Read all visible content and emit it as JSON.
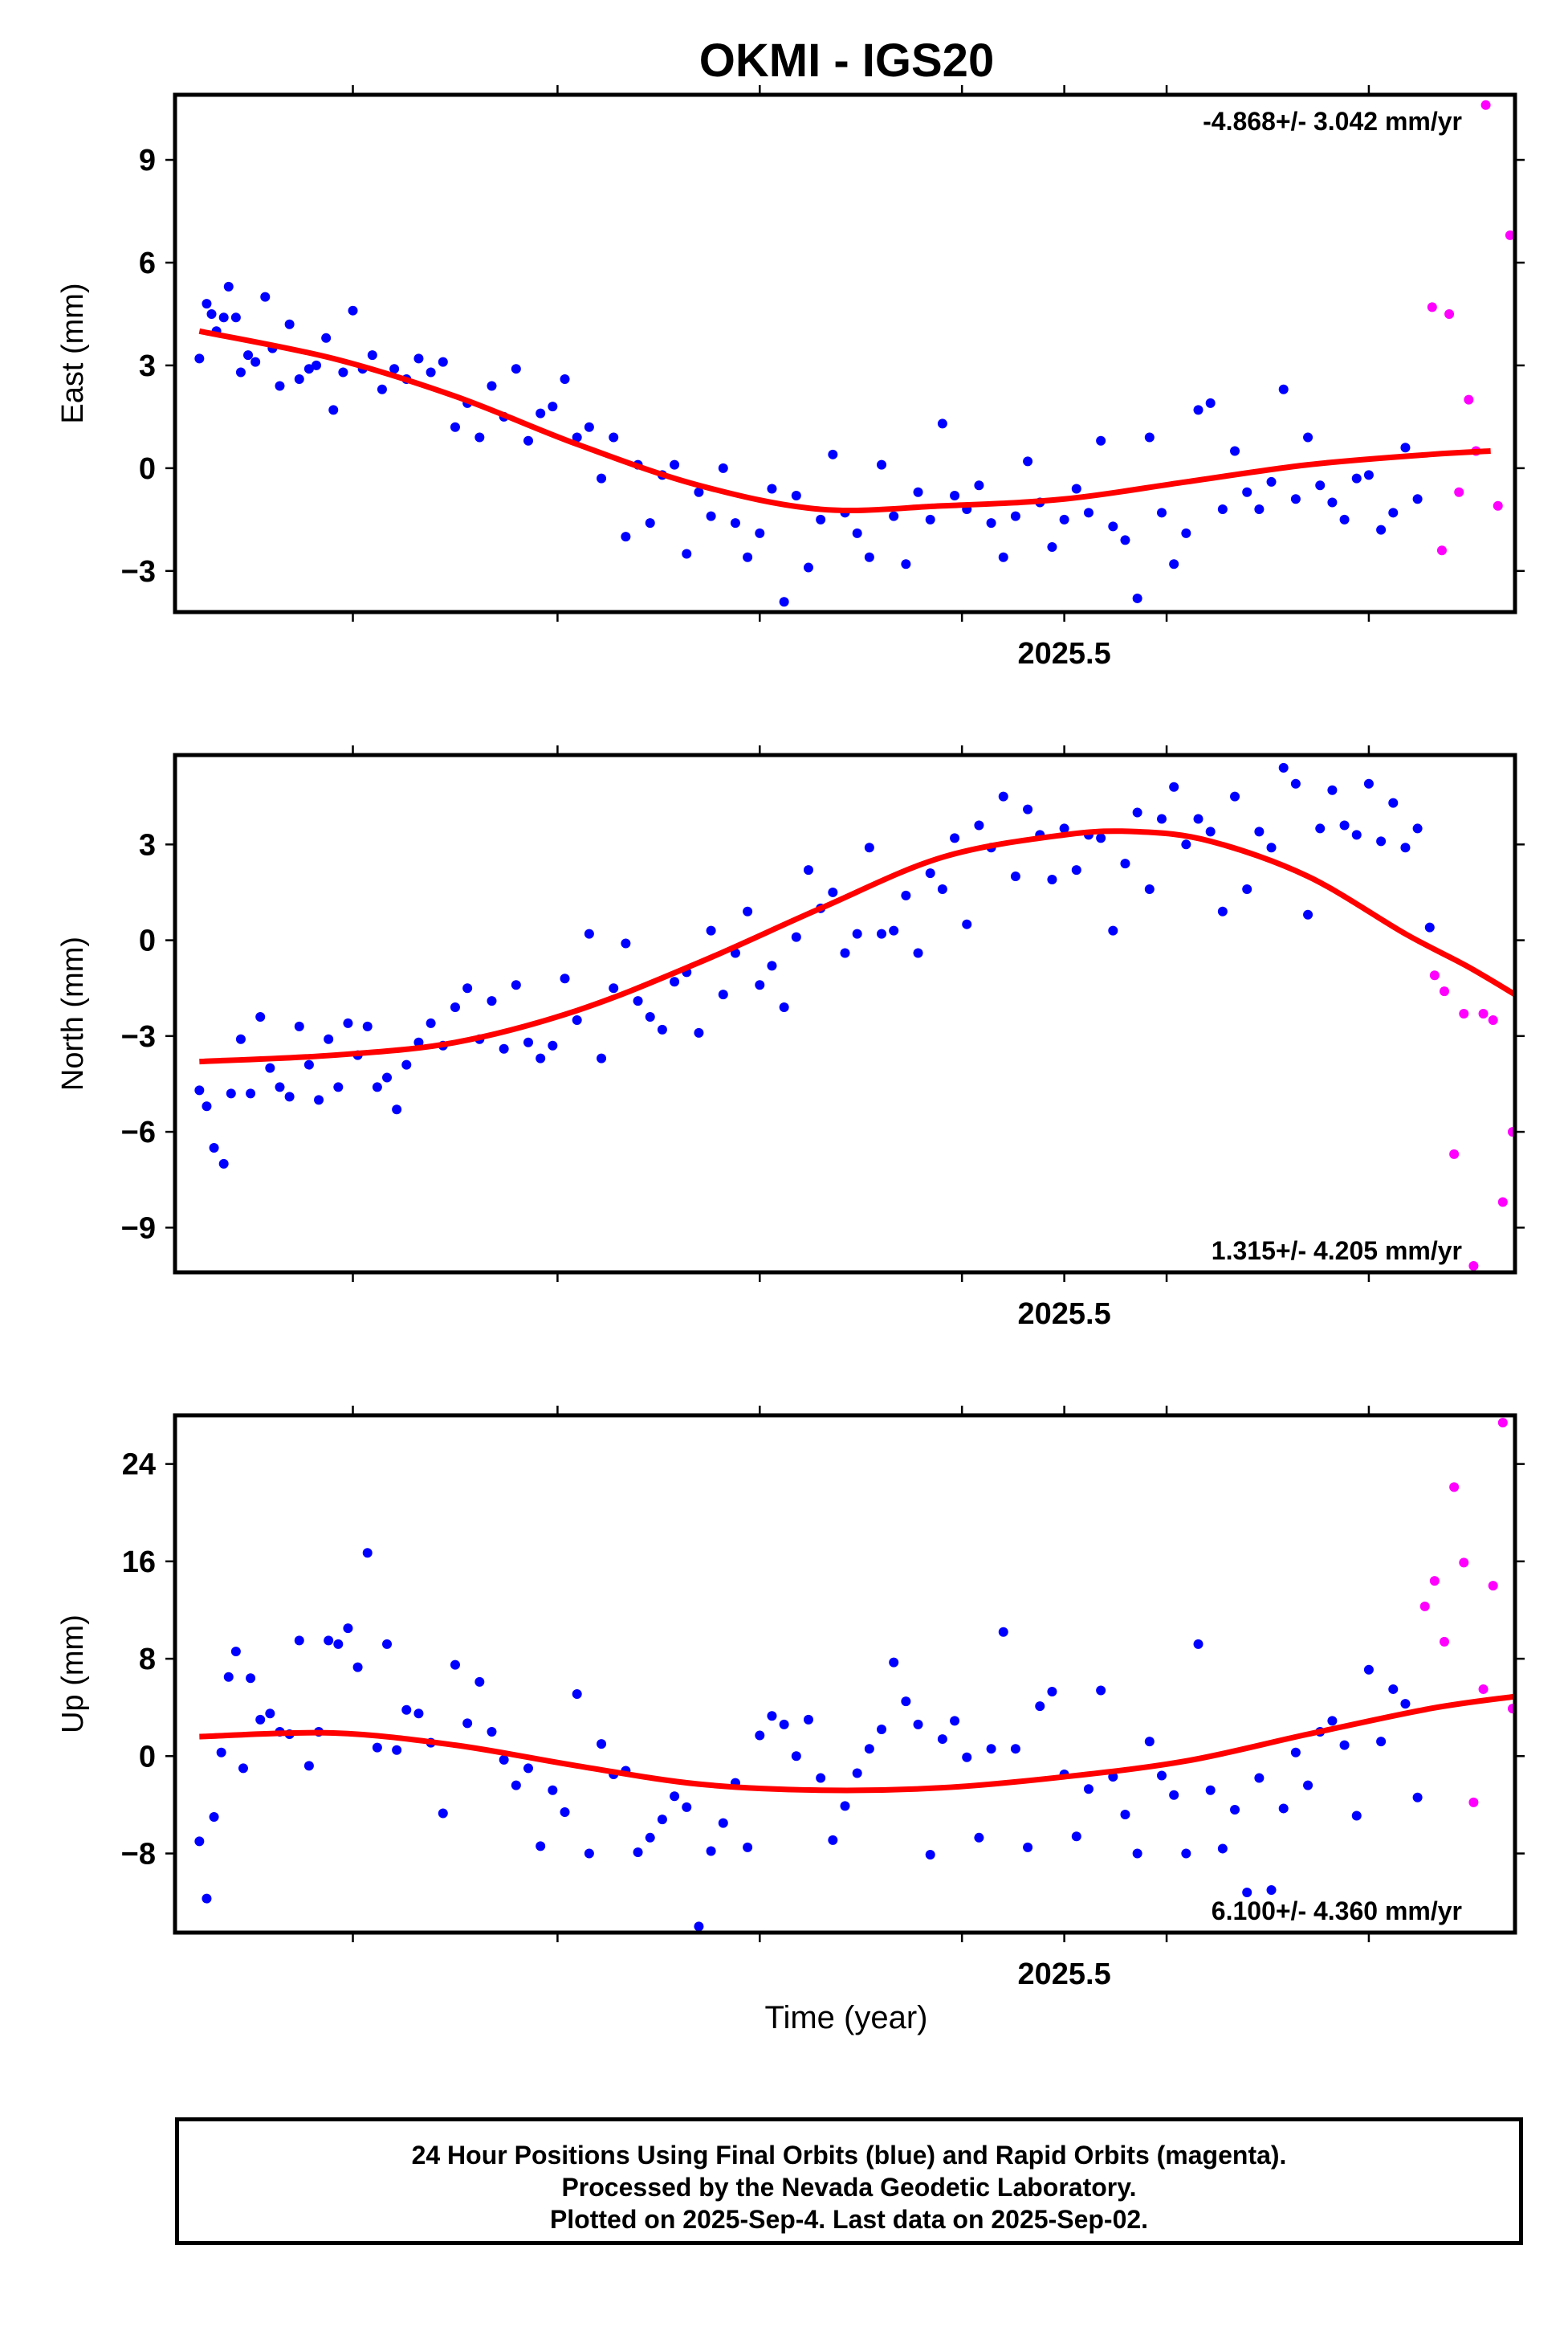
{
  "title": "OKMI - IGS20",
  "x_axis_label": "Time (year)",
  "footer": {
    "lines": [
      "24 Hour Positions Using Final Orbits (blue) and Rapid Orbits (magenta).",
      "Processed by the Nevada Geodetic Laboratory.",
      "Plotted on 2025-Sep-4. Last data on 2025-Sep-02."
    ]
  },
  "colors": {
    "final": "#0000ff",
    "rapid": "#ff00ff",
    "fit": "#ff0000"
  },
  "chart_data": [
    {
      "type": "scatter",
      "component": "east",
      "ylabel": "East (mm)",
      "rate_text": "-4.868+/- 3.042 mm/yr",
      "rate_position": "top-right",
      "xlim": [
        2025.135,
        2025.685
      ],
      "ylim": [
        -4.2,
        10.9
      ],
      "x_ticks": [
        2025.208,
        2025.292,
        2025.375,
        2025.458,
        2025.5,
        2025.542,
        2025.625
      ],
      "x_tick_labels": [
        {
          "x": 2025.5,
          "label": "2025.5"
        }
      ],
      "y_ticks": [
        -3,
        0,
        3,
        6,
        9
      ],
      "y_tick_labels": [
        "−3",
        "0",
        "3",
        "6",
        "9"
      ],
      "fit": {
        "x": [
          2025.145,
          2025.2,
          2025.25,
          2025.3,
          2025.35,
          2025.4,
          2025.45,
          2025.5,
          2025.55,
          2025.6,
          2025.65,
          2025.675
        ],
        "y": [
          4.0,
          3.2,
          2.1,
          0.7,
          -0.5,
          -1.2,
          -1.1,
          -0.9,
          -0.4,
          0.1,
          0.4,
          0.5
        ]
      },
      "final": {
        "x": [
          2025.145,
          2025.148,
          2025.15,
          2025.152,
          2025.155,
          2025.157,
          2025.16,
          2025.162,
          2025.165,
          2025.168,
          2025.172,
          2025.175,
          2025.178,
          2025.182,
          2025.186,
          2025.19,
          2025.193,
          2025.197,
          2025.2,
          2025.204,
          2025.208,
          2025.212,
          2025.216,
          2025.22,
          2025.225,
          2025.23,
          2025.235,
          2025.24,
          2025.245,
          2025.25,
          2025.255,
          2025.26,
          2025.265,
          2025.27,
          2025.275,
          2025.28,
          2025.285,
          2025.29,
          2025.295,
          2025.3,
          2025.305,
          2025.31,
          2025.315,
          2025.32,
          2025.325,
          2025.33,
          2025.335,
          2025.34,
          2025.345,
          2025.35,
          2025.355,
          2025.36,
          2025.365,
          2025.37,
          2025.375,
          2025.38,
          2025.385,
          2025.39,
          2025.395,
          2025.4,
          2025.405,
          2025.41,
          2025.415,
          2025.42,
          2025.425,
          2025.43,
          2025.435,
          2025.44,
          2025.445,
          2025.45,
          2025.455,
          2025.46,
          2025.465,
          2025.47,
          2025.475,
          2025.48,
          2025.485,
          2025.49,
          2025.495,
          2025.5,
          2025.505,
          2025.51,
          2025.515,
          2025.52,
          2025.525,
          2025.53,
          2025.535,
          2025.54,
          2025.545,
          2025.55,
          2025.555,
          2025.56,
          2025.565,
          2025.57,
          2025.575,
          2025.58,
          2025.585,
          2025.59,
          2025.595,
          2025.6,
          2025.605,
          2025.61,
          2025.615,
          2025.62,
          2025.625,
          2025.63,
          2025.635,
          2025.64,
          2025.645
        ],
        "y": [
          3.2,
          4.8,
          4.5,
          4.0,
          4.4,
          5.3,
          4.4,
          2.8,
          3.3,
          3.1,
          5.0,
          3.5,
          2.4,
          4.2,
          2.6,
          2.9,
          3.0,
          3.8,
          1.7,
          2.8,
          4.6,
          2.9,
          3.3,
          2.3,
          2.9,
          2.6,
          3.2,
          2.8,
          3.1,
          1.2,
          1.9,
          0.9,
          2.4,
          1.5,
          2.9,
          0.8,
          1.6,
          1.8,
          2.6,
          0.9,
          1.2,
          -0.3,
          0.9,
          -2.0,
          0.1,
          -1.6,
          -0.2,
          0.1,
          -2.5,
          -0.7,
          -1.4,
          0.0,
          -1.6,
          -2.6,
          -1.9,
          -0.6,
          -3.9,
          -0.8,
          -2.9,
          -1.5,
          0.4,
          -1.3,
          -1.9,
          -2.6,
          0.1,
          -1.4,
          -2.8,
          -0.7,
          -1.5,
          1.3,
          -0.8,
          -1.2,
          -0.5,
          -1.6,
          -2.6,
          -1.4,
          0.2,
          -1.0,
          -2.3,
          -1.5,
          -0.6,
          -1.3,
          0.8,
          -1.7,
          -2.1,
          -3.8,
          0.9,
          -1.3,
          -2.8,
          -1.9,
          1.7,
          1.9,
          -1.2,
          0.5,
          -0.7,
          -1.2,
          -0.4,
          2.3,
          -0.9,
          0.9,
          -0.5,
          -1.0,
          -1.5,
          -0.3,
          -0.2,
          -1.8,
          -1.3,
          0.6,
          -0.9
        ]
      },
      "rapid": {
        "x": [
          2025.651,
          2025.655,
          2025.658,
          2025.662,
          2025.666,
          2025.669,
          2025.673,
          2025.678,
          2025.683
        ],
        "y": [
          4.7,
          -2.4,
          4.5,
          -0.7,
          2.0,
          0.5,
          10.6,
          -1.1,
          6.8
        ]
      }
    },
    {
      "type": "scatter",
      "component": "north",
      "ylabel": "North (mm)",
      "rate_text": "1.315+/- 4.205 mm/yr",
      "rate_position": "bottom-right",
      "xlim": [
        2025.135,
        2025.685
      ],
      "ylim": [
        -10.4,
        5.8
      ],
      "x_ticks": [
        2025.208,
        2025.292,
        2025.375,
        2025.458,
        2025.5,
        2025.542,
        2025.625
      ],
      "x_tick_labels": [
        {
          "x": 2025.5,
          "label": "2025.5"
        }
      ],
      "y_ticks": [
        -9,
        -6,
        -3,
        0,
        3
      ],
      "y_tick_labels": [
        "−9",
        "−6",
        "−3",
        "0",
        "3"
      ],
      "fit": {
        "x": [
          2025.145,
          2025.2,
          2025.25,
          2025.3,
          2025.35,
          2025.4,
          2025.45,
          2025.5,
          2025.53,
          2025.56,
          2025.6,
          2025.64,
          2025.665,
          2025.685
        ],
        "y": [
          -3.8,
          -3.6,
          -3.2,
          -2.2,
          -0.7,
          1.0,
          2.6,
          3.3,
          3.4,
          3.1,
          2.0,
          0.2,
          -0.8,
          -1.7
        ]
      },
      "final": {
        "x": [
          2025.145,
          2025.148,
          2025.151,
          2025.155,
          2025.158,
          2025.162,
          2025.166,
          2025.17,
          2025.174,
          2025.178,
          2025.182,
          2025.186,
          2025.19,
          2025.194,
          2025.198,
          2025.202,
          2025.206,
          2025.21,
          2025.214,
          2025.218,
          2025.222,
          2025.226,
          2025.23,
          2025.235,
          2025.24,
          2025.245,
          2025.25,
          2025.255,
          2025.26,
          2025.265,
          2025.27,
          2025.275,
          2025.28,
          2025.285,
          2025.29,
          2025.295,
          2025.3,
          2025.305,
          2025.31,
          2025.315,
          2025.32,
          2025.325,
          2025.33,
          2025.335,
          2025.34,
          2025.345,
          2025.35,
          2025.355,
          2025.36,
          2025.365,
          2025.37,
          2025.375,
          2025.38,
          2025.385,
          2025.39,
          2025.395,
          2025.4,
          2025.405,
          2025.41,
          2025.415,
          2025.42,
          2025.425,
          2025.43,
          2025.435,
          2025.44,
          2025.445,
          2025.45,
          2025.455,
          2025.46,
          2025.465,
          2025.47,
          2025.475,
          2025.48,
          2025.485,
          2025.49,
          2025.495,
          2025.5,
          2025.505,
          2025.51,
          2025.515,
          2025.52,
          2025.525,
          2025.53,
          2025.535,
          2025.54,
          2025.545,
          2025.55,
          2025.555,
          2025.56,
          2025.565,
          2025.57,
          2025.575,
          2025.58,
          2025.585,
          2025.59,
          2025.595,
          2025.6,
          2025.605,
          2025.61,
          2025.615,
          2025.62,
          2025.625,
          2025.63,
          2025.635,
          2025.64,
          2025.645,
          2025.65
        ],
        "y": [
          -4.7,
          -5.2,
          -6.5,
          -7.0,
          -4.8,
          -3.1,
          -4.8,
          -2.4,
          -4.0,
          -4.6,
          -4.9,
          -2.7,
          -3.9,
          -5.0,
          -3.1,
          -4.6,
          -2.6,
          -3.6,
          -2.7,
          -4.6,
          -4.3,
          -5.3,
          -3.9,
          -3.2,
          -2.6,
          -3.3,
          -2.1,
          -1.5,
          -3.1,
          -1.9,
          -3.4,
          -1.4,
          -3.2,
          -3.7,
          -3.3,
          -1.2,
          -2.5,
          0.2,
          -3.7,
          -1.5,
          -0.1,
          -1.9,
          -2.4,
          -2.8,
          -1.3,
          -1.0,
          -2.9,
          0.3,
          -1.7,
          -0.4,
          0.9,
          -1.4,
          -0.8,
          -2.1,
          0.1,
          2.2,
          1.0,
          1.5,
          -0.4,
          0.2,
          2.9,
          0.2,
          0.3,
          1.4,
          -0.4,
          2.1,
          1.6,
          3.2,
          0.5,
          3.6,
          2.9,
          4.5,
          2.0,
          4.1,
          3.3,
          1.9,
          3.5,
          2.2,
          3.3,
          3.2,
          0.3,
          2.4,
          4.0,
          1.6,
          3.8,
          4.8,
          3.0,
          3.8,
          3.4,
          0.9,
          4.5,
          1.6,
          3.4,
          2.9,
          5.4,
          4.9,
          0.8,
          3.5,
          4.7,
          3.6,
          3.3,
          4.9,
          3.1,
          4.3,
          2.9,
          3.5,
          0.4
        ]
      },
      "rapid": {
        "x": [
          2025.652,
          2025.656,
          2025.66,
          2025.664,
          2025.668,
          2025.672,
          2025.676,
          2025.68,
          2025.684
        ],
        "y": [
          -1.1,
          -1.6,
          -6.7,
          -2.3,
          -10.2,
          -2.3,
          -2.5,
          -8.2,
          -6.0
        ]
      }
    },
    {
      "type": "scatter",
      "component": "up",
      "ylabel": "Up (mm)",
      "rate_text": "6.100+/- 4.360 mm/yr",
      "rate_position": "bottom-right",
      "xlim": [
        2025.135,
        2025.685
      ],
      "ylim": [
        -14.5,
        28.0
      ],
      "x_ticks": [
        2025.208,
        2025.292,
        2025.375,
        2025.458,
        2025.5,
        2025.542,
        2025.625
      ],
      "x_tick_labels": [
        {
          "x": 2025.5,
          "label": "2025.5"
        }
      ],
      "y_ticks": [
        -8,
        0,
        8,
        16,
        24
      ],
      "y_tick_labels": [
        "−8",
        "0",
        "8",
        "16",
        "24"
      ],
      "fit": {
        "x": [
          2025.145,
          2025.2,
          2025.25,
          2025.3,
          2025.35,
          2025.4,
          2025.45,
          2025.5,
          2025.55,
          2025.6,
          2025.65,
          2025.685
        ],
        "y": [
          1.6,
          1.9,
          0.9,
          -0.8,
          -2.3,
          -2.8,
          -2.6,
          -1.7,
          -0.4,
          1.8,
          3.9,
          4.9
        ]
      },
      "final": {
        "x": [
          2025.145,
          2025.148,
          2025.151,
          2025.154,
          2025.157,
          2025.16,
          2025.163,
          2025.166,
          2025.17,
          2025.174,
          2025.178,
          2025.182,
          2025.186,
          2025.19,
          2025.194,
          2025.198,
          2025.202,
          2025.206,
          2025.21,
          2025.214,
          2025.218,
          2025.222,
          2025.226,
          2025.23,
          2025.235,
          2025.24,
          2025.245,
          2025.25,
          2025.255,
          2025.26,
          2025.265,
          2025.27,
          2025.275,
          2025.28,
          2025.285,
          2025.29,
          2025.295,
          2025.3,
          2025.305,
          2025.31,
          2025.315,
          2025.32,
          2025.325,
          2025.33,
          2025.335,
          2025.34,
          2025.345,
          2025.35,
          2025.355,
          2025.36,
          2025.365,
          2025.37,
          2025.375,
          2025.38,
          2025.385,
          2025.39,
          2025.395,
          2025.4,
          2025.405,
          2025.41,
          2025.415,
          2025.42,
          2025.425,
          2025.43,
          2025.435,
          2025.44,
          2025.445,
          2025.45,
          2025.455,
          2025.46,
          2025.465,
          2025.47,
          2025.475,
          2025.48,
          2025.485,
          2025.49,
          2025.495,
          2025.5,
          2025.505,
          2025.51,
          2025.515,
          2025.52,
          2025.525,
          2025.53,
          2025.535,
          2025.54,
          2025.545,
          2025.55,
          2025.555,
          2025.56,
          2025.565,
          2025.57,
          2025.575,
          2025.58,
          2025.585,
          2025.59,
          2025.595,
          2025.6,
          2025.605,
          2025.61,
          2025.615,
          2025.62,
          2025.625,
          2025.63,
          2025.635,
          2025.64,
          2025.645
        ],
        "y": [
          -7.0,
          -11.7,
          -5.0,
          0.3,
          6.5,
          8.6,
          -1.0,
          6.4,
          3.0,
          3.5,
          2.0,
          1.8,
          9.5,
          -0.8,
          2.0,
          9.5,
          9.2,
          10.5,
          7.3,
          16.7,
          0.7,
          9.2,
          0.5,
          3.8,
          3.5,
          1.1,
          -4.7,
          7.5,
          2.7,
          6.1,
          2.0,
          -0.3,
          -2.4,
          -1.0,
          -7.4,
          -2.8,
          -4.6,
          5.1,
          -8.0,
          1.0,
          -1.5,
          -1.2,
          -7.9,
          -6.7,
          -5.2,
          -3.3,
          -4.2,
          -14.0,
          -7.8,
          -5.5,
          -2.2,
          -7.5,
          1.7,
          3.3,
          2.6,
          0.0,
          3.0,
          -1.8,
          -6.9,
          -4.1,
          -1.4,
          0.6,
          2.2,
          7.7,
          4.5,
          2.6,
          -8.1,
          1.4,
          2.9,
          -0.1,
          -6.7,
          0.6,
          10.2,
          0.6,
          -7.5,
          4.1,
          5.3,
          -1.5,
          -6.6,
          -2.7,
          5.4,
          -1.7,
          -4.8,
          -8.0,
          1.2,
          -1.6,
          -3.2,
          -8.0,
          9.2,
          -2.8,
          -7.6,
          -4.4,
          -11.2,
          -1.8,
          -11.0,
          -4.3,
          0.3,
          -2.4,
          2.0,
          2.9,
          0.9,
          -4.9,
          7.1,
          1.2,
          5.5,
          4.3,
          -3.4
        ]
      },
      "rapid": {
        "x": [
          2025.648,
          2025.652,
          2025.656,
          2025.66,
          2025.664,
          2025.668,
          2025.672,
          2025.676,
          2025.68,
          2025.684
        ],
        "y": [
          12.3,
          14.4,
          9.4,
          22.1,
          15.9,
          -3.8,
          5.5,
          14.0,
          27.4,
          3.9
        ]
      }
    }
  ]
}
